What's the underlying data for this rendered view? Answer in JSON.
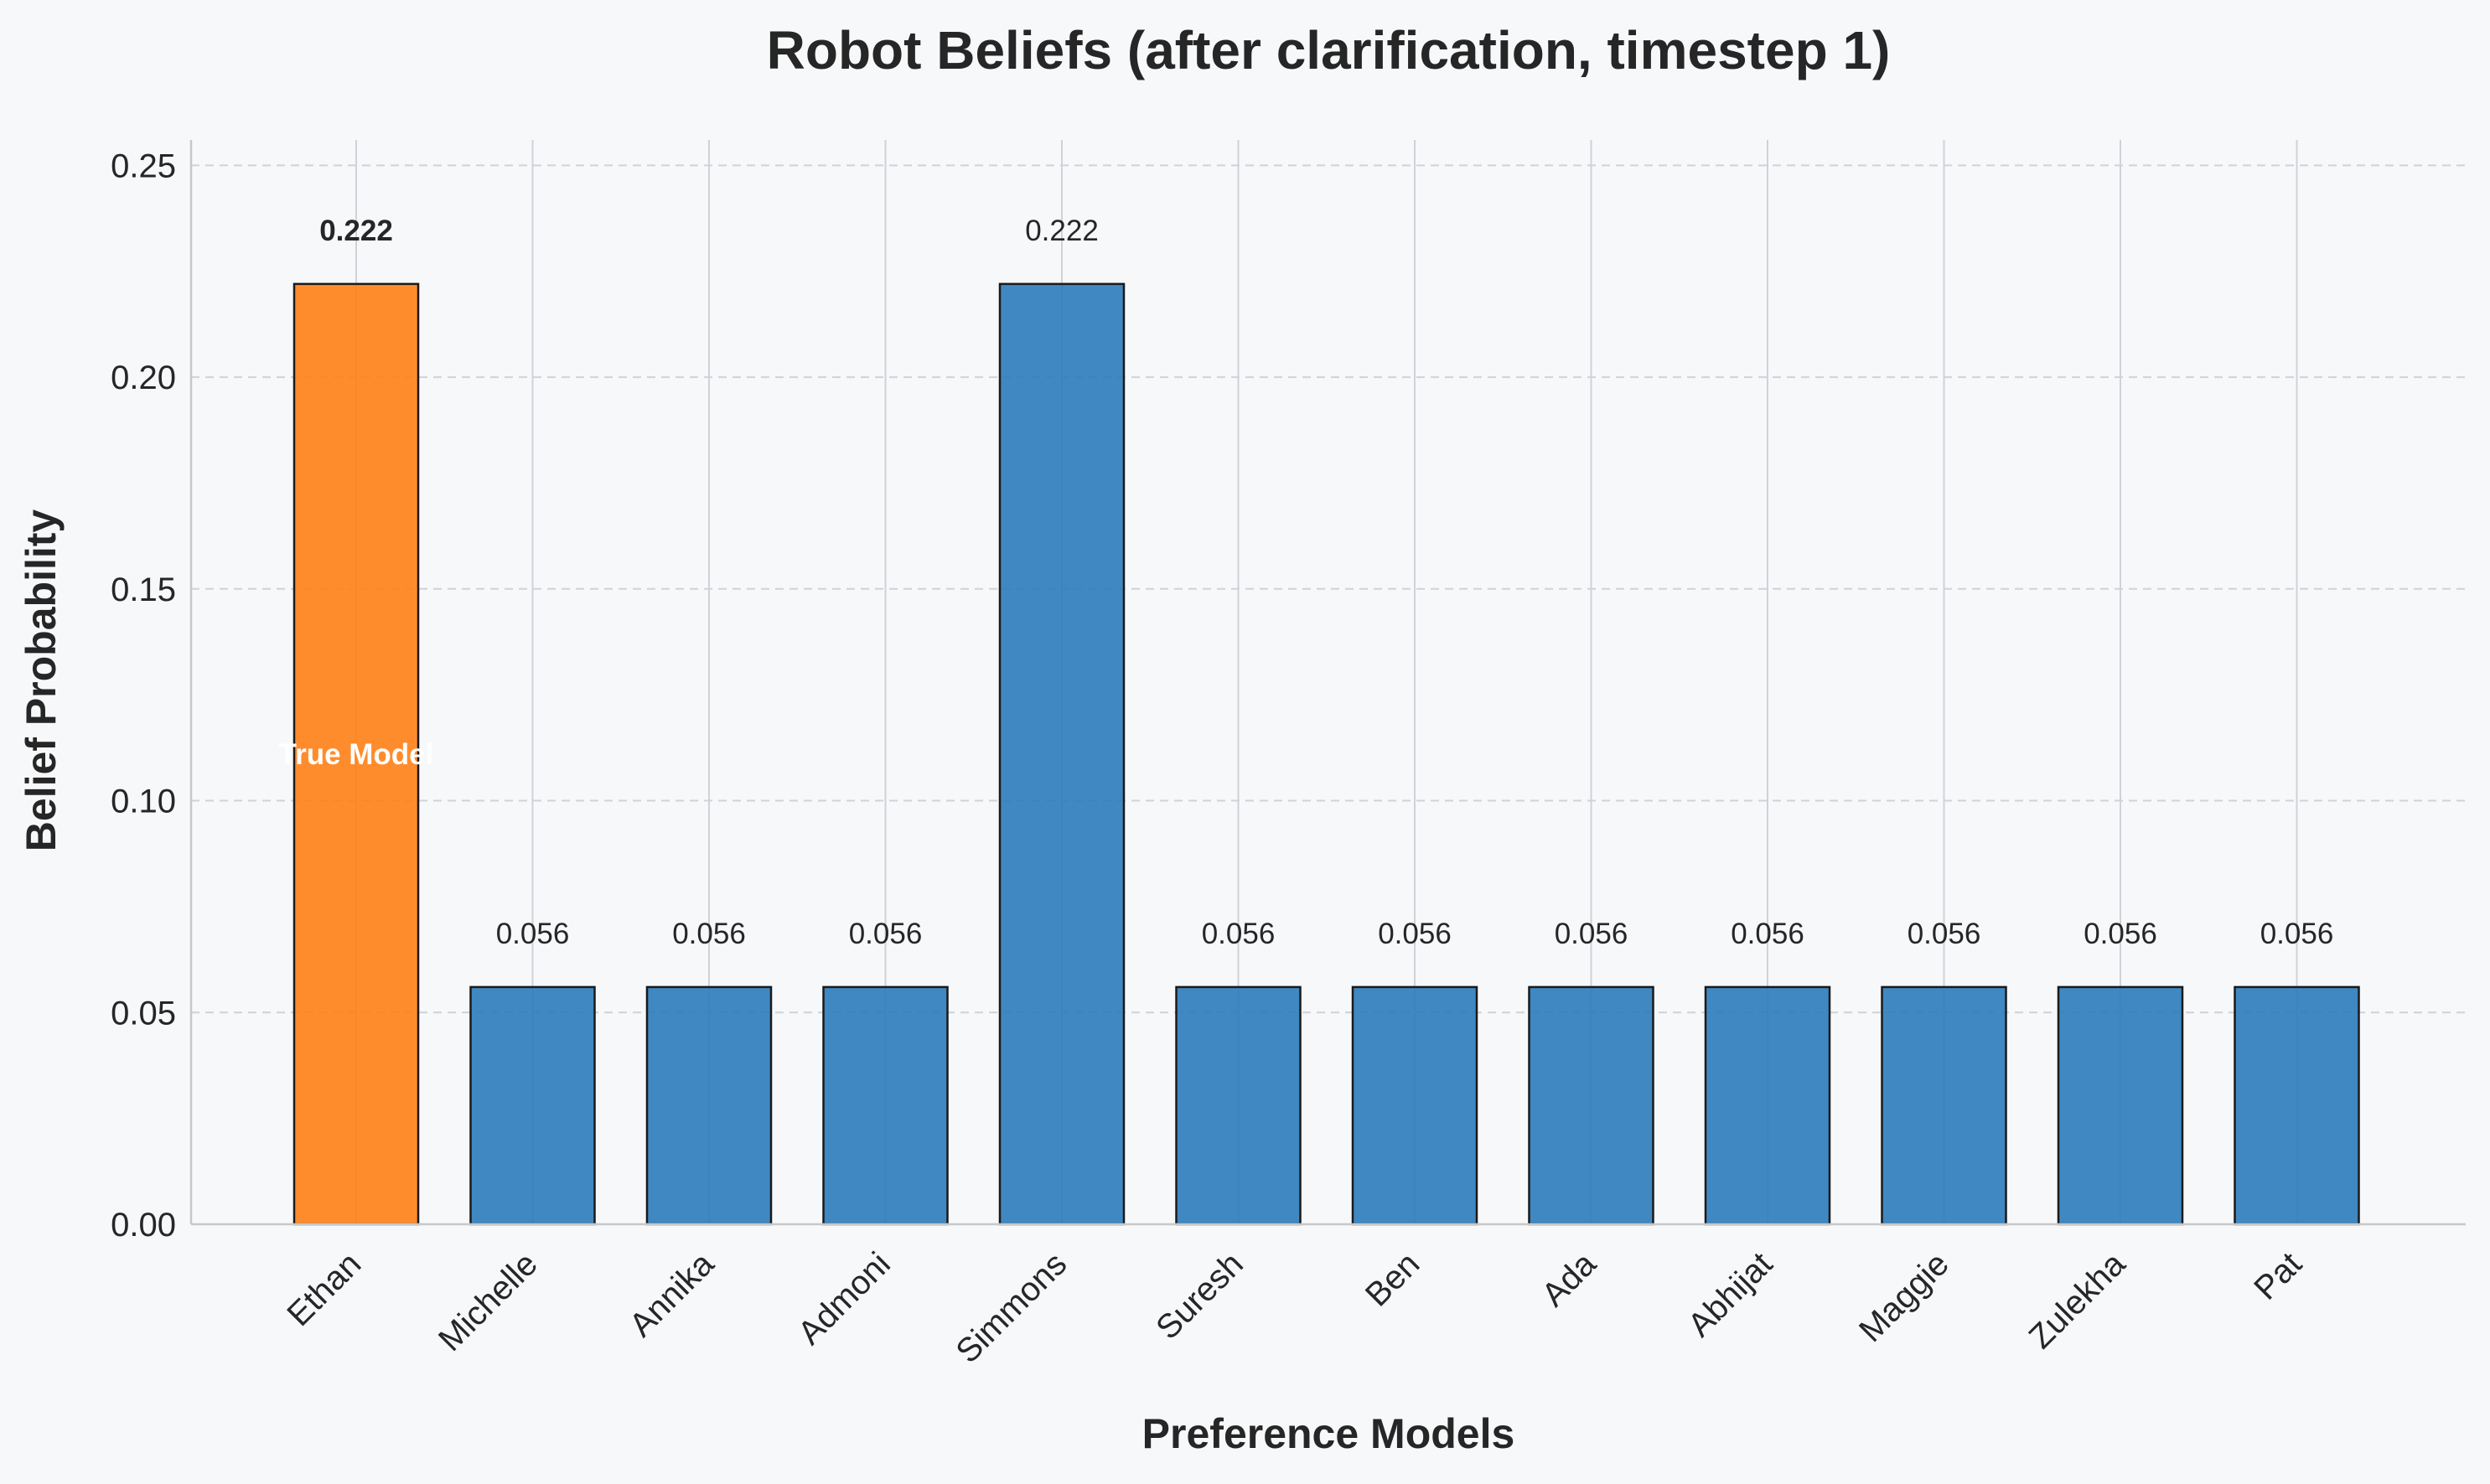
{
  "chart_data": {
    "type": "bar",
    "title": "Robot Beliefs (after clarification, timestep 1)",
    "xlabel": "Preference Models",
    "ylabel": "Belief Probability",
    "categories": [
      "Ethan",
      "Michelle",
      "Annika",
      "Admoni",
      "Simmons",
      "Suresh",
      "Ben",
      "Ada",
      "Abhijat",
      "Maggie",
      "Zulekha",
      "Pat"
    ],
    "values": [
      0.222,
      0.056,
      0.056,
      0.056,
      0.222,
      0.056,
      0.056,
      0.056,
      0.056,
      0.056,
      0.056,
      0.056
    ],
    "value_labels": [
      "0.222",
      "0.056",
      "0.056",
      "0.056",
      "0.222",
      "0.056",
      "0.056",
      "0.056",
      "0.056",
      "0.056",
      "0.056",
      "0.056"
    ],
    "ylim": [
      0,
      0.256
    ],
    "yticks": [
      0.0,
      0.05,
      0.1,
      0.15,
      0.2,
      0.25
    ],
    "ytick_labels": [
      "0.00",
      "0.05",
      "0.10",
      "0.15",
      "0.20",
      "0.25"
    ],
    "highlight_index": 0,
    "highlight_label": "True Model",
    "grid": true,
    "colors": {
      "default_bar": "#2b7bba",
      "highlight_bar": "#ff8015",
      "bar_edge": "#1a1a1a",
      "background": "#f7f8fa",
      "grid": "#cfd2d8"
    }
  }
}
